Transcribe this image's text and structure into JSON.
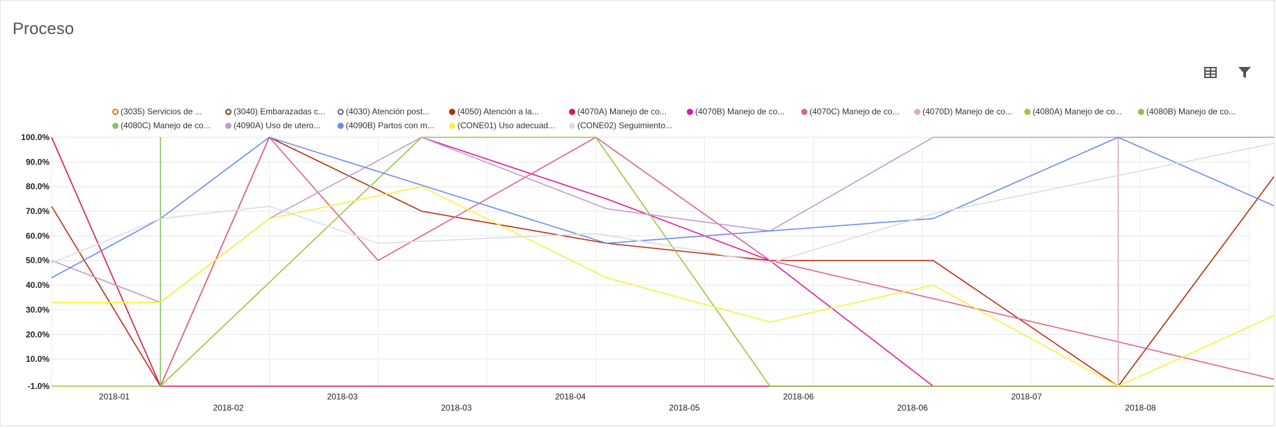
{
  "page": {
    "title": "Proceso"
  },
  "toolbar": {
    "table_icon": "table-icon",
    "filter_icon": "filter-icon"
  },
  "chart_data": {
    "type": "line",
    "title": "",
    "xlabel": "",
    "ylabel": "",
    "x": [
      "2018-01",
      "2018-02",
      "2018-03",
      "2018-03",
      "2018-04",
      "2018-05",
      "2018-06",
      "2018-06",
      "2018-07",
      "2018-08"
    ],
    "y_ticks": [
      "-1.0%",
      "10.0%",
      "20.0%",
      "30.0%",
      "40.0%",
      "50.0%",
      "60.0%",
      "70.0%",
      "80.0%",
      "90.0%",
      "100.0%"
    ],
    "ylim": [
      -1,
      100
    ],
    "grid": true,
    "legend_position": "top",
    "series": [
      {
        "name": "(3035) Servicios de ...",
        "color": "#E8731A",
        "marker": "hollow",
        "points": []
      },
      {
        "name": "(3040) Embarazadas c...",
        "color": "#7A4A1E",
        "marker": "hollow",
        "points": []
      },
      {
        "name": "(4030) Atención post...",
        "color": "#5B6A8C",
        "marker": "hollow",
        "points": []
      },
      {
        "name": "(4050) Atención a la...",
        "color": "#B82D0E",
        "points": [
          [
            0,
            72
          ],
          [
            1,
            -1
          ],
          [
            2,
            100
          ],
          [
            3.4,
            70
          ],
          [
            5.1,
            57
          ],
          [
            6.6,
            50
          ],
          [
            8.1,
            50
          ],
          [
            9.8,
            -1
          ],
          [
            11.5,
            100
          ]
        ]
      },
      {
        "name": "(4070A) Manejo de co...",
        "color": "#D8174F",
        "points": [
          [
            0,
            100
          ],
          [
            1,
            -1
          ],
          [
            2,
            -1
          ],
          [
            3.4,
            -1
          ],
          [
            5.1,
            -1
          ],
          [
            6.6,
            -1
          ],
          [
            8.1,
            -1
          ],
          [
            9.8,
            -1
          ],
          [
            11.5,
            -1
          ]
        ]
      },
      {
        "name": "(4070B) Manejo de co...",
        "color": "#E0169F",
        "points": [
          [
            3.4,
            100
          ],
          [
            5.1,
            75
          ],
          [
            6.6,
            50
          ],
          [
            8.1,
            -1
          ]
        ]
      },
      {
        "name": "(4070C) Manejo de co...",
        "color": "#E0608E",
        "points": [
          [
            1,
            -1
          ],
          [
            2,
            100
          ],
          [
            3,
            50
          ],
          [
            5,
            100
          ],
          [
            6.6,
            50
          ],
          [
            9.8,
            17
          ],
          [
            11.5,
            -1
          ]
        ]
      },
      {
        "name": "(4070D) Manejo de co...",
        "color": "#E0A8C4",
        "points": [
          [
            9.8,
            -1
          ],
          [
            9.8,
            100
          ],
          [
            11.5,
            100
          ]
        ]
      },
      {
        "name": "(4080A) Manejo de co...",
        "color": "#9BC53D",
        "points": [
          [
            0,
            -1
          ],
          [
            1,
            -1
          ],
          [
            3.4,
            100
          ],
          [
            5,
            100
          ],
          [
            6.6,
            -1
          ],
          [
            8.1,
            -1
          ],
          [
            9.8,
            -1
          ],
          [
            11.5,
            -1
          ]
        ]
      },
      {
        "name": "(4080B) Manejo de co...",
        "color": "#8BBF5A",
        "points": []
      },
      {
        "name": "(4080C) Manejo de co...",
        "color": "#86C16A",
        "points": [
          [
            1,
            -1
          ],
          [
            1,
            100
          ]
        ]
      },
      {
        "name": "(4090A) Uso de utero...",
        "color": "#C29BD0",
        "points": [
          [
            0,
            50
          ],
          [
            1,
            33
          ],
          [
            2,
            67
          ],
          [
            3.4,
            100
          ],
          [
            5.1,
            71
          ],
          [
            6.6,
            62
          ],
          [
            8.1,
            100
          ],
          [
            11.5,
            100
          ]
        ]
      },
      {
        "name": "(4090B) Partos con m...",
        "color": "#6A8CF0",
        "points": [
          [
            0,
            43
          ],
          [
            1,
            67
          ],
          [
            2,
            100
          ],
          [
            5.1,
            57
          ],
          [
            6.6,
            62
          ],
          [
            8.1,
            67
          ],
          [
            9.8,
            100
          ],
          [
            11.5,
            67
          ]
        ]
      },
      {
        "name": "(CONE01) Uso adecuad...",
        "color": "#F5F23A",
        "points": [
          [
            0,
            33
          ],
          [
            1,
            33
          ],
          [
            2,
            67
          ],
          [
            3.4,
            80
          ],
          [
            5.1,
            43
          ],
          [
            6.6,
            25
          ],
          [
            8.1,
            40
          ],
          [
            9.8,
            -1
          ],
          [
            11.5,
            33
          ]
        ]
      },
      {
        "name": "(CONE02) Seguimiento...",
        "color": "#DCDCE4",
        "points": [
          [
            0,
            49
          ],
          [
            1,
            67
          ],
          [
            2,
            72
          ],
          [
            3,
            57
          ],
          [
            5,
            61
          ],
          [
            6.6,
            49
          ],
          [
            8.1,
            69
          ],
          [
            11.5,
            100
          ]
        ]
      }
    ]
  }
}
